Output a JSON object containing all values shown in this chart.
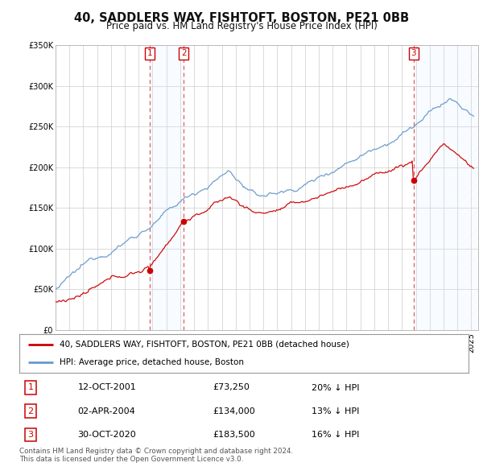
{
  "title": "40, SADDLERS WAY, FISHTOFT, BOSTON, PE21 0BB",
  "subtitle": "Price paid vs. HM Land Registry's House Price Index (HPI)",
  "ylim": [
    0,
    350000
  ],
  "xlim_start": 1995.0,
  "xlim_end": 2025.5,
  "transactions": [
    {
      "num": 1,
      "date_label": "12-OCT-2001",
      "price": 73250,
      "hpi_pct": "20% ↓ HPI",
      "x_year": 2001.79
    },
    {
      "num": 2,
      "date_label": "02-APR-2004",
      "price": 134000,
      "hpi_pct": "13% ↓ HPI",
      "x_year": 2004.25
    },
    {
      "num": 3,
      "date_label": "30-OCT-2020",
      "price": 183500,
      "hpi_pct": "16% ↓ HPI",
      "x_year": 2020.83
    }
  ],
  "legend_red_label": "40, SADDLERS WAY, FISHTOFT, BOSTON, PE21 0BB (detached house)",
  "legend_blue_label": "HPI: Average price, detached house, Boston",
  "footer": "Contains HM Land Registry data © Crown copyright and database right 2024.\nThis data is licensed under the Open Government Licence v3.0.",
  "red_color": "#cc0000",
  "blue_color": "#6699cc",
  "shade_color": "#ddeeff",
  "vline_color": "#dd4444",
  "background_color": "#ffffff",
  "grid_color": "#cccccc",
  "hatch_end": 2025.5
}
